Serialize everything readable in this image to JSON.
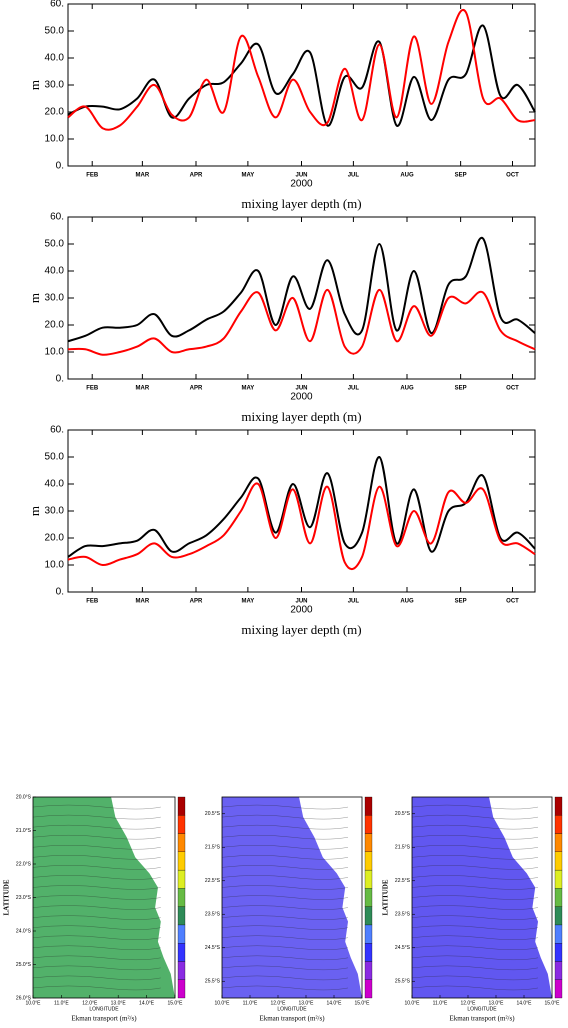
{
  "chart_data": [
    {
      "type": "line",
      "title": "mixing layer depth (m)",
      "xlabel": "2000",
      "ylabel": "m",
      "x": [
        32,
        42,
        52,
        62,
        72,
        82,
        92,
        102,
        112,
        122,
        132,
        142,
        152,
        162,
        172,
        182,
        192,
        202,
        212,
        222,
        232,
        242,
        252,
        262,
        272,
        282,
        292,
        302
      ],
      "xlim": [
        32,
        302
      ],
      "xticks": [
        {
          "value": 46,
          "label": "FEB"
        },
        {
          "value": 75,
          "label": "MAR"
        },
        {
          "value": 106,
          "label": "APR"
        },
        {
          "value": 136,
          "label": "MAY"
        },
        {
          "value": 167,
          "label": "JUN"
        },
        {
          "value": 197,
          "label": "JUL"
        },
        {
          "value": 228,
          "label": "AUG"
        },
        {
          "value": 259,
          "label": "SEP"
        },
        {
          "value": 289,
          "label": "OCT"
        }
      ],
      "ylim": [
        0,
        60
      ],
      "yticks": [
        {
          "value": 0,
          "label": "0."
        },
        {
          "value": 10,
          "label": "10.0"
        },
        {
          "value": 20,
          "label": "20.0"
        },
        {
          "value": 30,
          "label": "30.0"
        },
        {
          "value": 40,
          "label": "40.0"
        },
        {
          "value": 50,
          "label": "50.0"
        },
        {
          "value": 60,
          "label": "60."
        }
      ],
      "series": [
        {
          "color": "#000000",
          "values": [
            19,
            22,
            22,
            21,
            25,
            32,
            18,
            25,
            30,
            31,
            38,
            45,
            27,
            34,
            42,
            15,
            33,
            29,
            46,
            15,
            33,
            17,
            32,
            34,
            52,
            26,
            30,
            20
          ]
        },
        {
          "color": "#ff0000",
          "values": [
            18,
            22,
            14,
            15,
            22,
            30,
            19,
            18,
            32,
            20,
            48,
            33,
            18,
            32,
            20,
            16,
            36,
            17,
            45,
            18,
            48,
            23,
            46,
            57,
            25,
            25,
            17,
            17
          ]
        }
      ]
    },
    {
      "type": "line",
      "title": "mixing layer depth (m)",
      "xlabel": "2000",
      "ylabel": "m",
      "x": [
        32,
        42,
        52,
        62,
        72,
        82,
        92,
        102,
        112,
        122,
        132,
        142,
        152,
        162,
        172,
        182,
        192,
        202,
        212,
        222,
        232,
        242,
        252,
        262,
        272,
        282,
        292,
        302
      ],
      "xlim": [
        32,
        302
      ],
      "xticks": [
        {
          "value": 46,
          "label": "FEB"
        },
        {
          "value": 75,
          "label": "MAR"
        },
        {
          "value": 106,
          "label": "APR"
        },
        {
          "value": 136,
          "label": "MAY"
        },
        {
          "value": 167,
          "label": "JUN"
        },
        {
          "value": 197,
          "label": "JUL"
        },
        {
          "value": 228,
          "label": "AUG"
        },
        {
          "value": 259,
          "label": "SEP"
        },
        {
          "value": 289,
          "label": "OCT"
        }
      ],
      "ylim": [
        0,
        60
      ],
      "yticks": [
        {
          "value": 0,
          "label": "0."
        },
        {
          "value": 10,
          "label": "10.0"
        },
        {
          "value": 20,
          "label": "20.0"
        },
        {
          "value": 30,
          "label": "30.0"
        },
        {
          "value": 40,
          "label": "40.0"
        },
        {
          "value": 50,
          "label": "50.0"
        },
        {
          "value": 60,
          "label": "60."
        }
      ],
      "series": [
        {
          "color": "#000000",
          "values": [
            14,
            16,
            19,
            19,
            20,
            24,
            16,
            18,
            22,
            25,
            32,
            40,
            20,
            38,
            26,
            44,
            24,
            18,
            50,
            18,
            40,
            17,
            35,
            38,
            52,
            23,
            22,
            17
          ]
        },
        {
          "color": "#ff0000",
          "values": [
            11,
            11,
            9,
            10,
            12,
            15,
            10,
            11,
            12,
            15,
            25,
            32,
            18,
            30,
            14,
            33,
            12,
            12,
            33,
            14,
            27,
            16,
            30,
            28,
            32,
            18,
            14,
            11
          ]
        }
      ]
    },
    {
      "type": "line",
      "title": "mixing layer depth (m)",
      "xlabel": "2000",
      "ylabel": "m",
      "x": [
        32,
        42,
        52,
        62,
        72,
        82,
        92,
        102,
        112,
        122,
        132,
        142,
        152,
        162,
        172,
        182,
        192,
        202,
        212,
        222,
        232,
        242,
        252,
        262,
        272,
        282,
        292,
        302
      ],
      "xlim": [
        32,
        302
      ],
      "xticks": [
        {
          "value": 46,
          "label": "FEB"
        },
        {
          "value": 75,
          "label": "MAR"
        },
        {
          "value": 106,
          "label": "APR"
        },
        {
          "value": 136,
          "label": "MAY"
        },
        {
          "value": 167,
          "label": "JUN"
        },
        {
          "value": 197,
          "label": "JUL"
        },
        {
          "value": 228,
          "label": "AUG"
        },
        {
          "value": 259,
          "label": "SEP"
        },
        {
          "value": 289,
          "label": "OCT"
        }
      ],
      "ylim": [
        0,
        60
      ],
      "yticks": [
        {
          "value": 0,
          "label": "0."
        },
        {
          "value": 10,
          "label": "10.0"
        },
        {
          "value": 20,
          "label": "20.0"
        },
        {
          "value": 30,
          "label": "30.0"
        },
        {
          "value": 40,
          "label": "40.0"
        },
        {
          "value": 50,
          "label": "50.0"
        },
        {
          "value": 60,
          "label": "60."
        }
      ],
      "series": [
        {
          "color": "#000000",
          "values": [
            13,
            17,
            17,
            18,
            19,
            23,
            15,
            18,
            21,
            27,
            35,
            42,
            22,
            40,
            24,
            44,
            18,
            22,
            50,
            18,
            38,
            15,
            30,
            33,
            43,
            20,
            22,
            16
          ]
        },
        {
          "color": "#ff0000",
          "values": [
            12,
            13,
            10,
            12,
            14,
            18,
            13,
            14,
            17,
            21,
            30,
            40,
            20,
            38,
            18,
            39,
            11,
            13,
            39,
            17,
            30,
            18,
            37,
            33,
            38,
            19,
            18,
            14
          ]
        }
      ]
    },
    {
      "type": "map",
      "xlabel": "LONGITUDE",
      "ylabel": "LATITUDE",
      "title": "Ekman transport (m²/s)",
      "color": "#3fa85a",
      "xlim": [
        10,
        15
      ],
      "xticks": [
        {
          "value": 10,
          "label": "10.0°E"
        },
        {
          "value": 11,
          "label": "11.0°E"
        },
        {
          "value": 12,
          "label": "12.0°E"
        },
        {
          "value": 13,
          "label": "13.0°E"
        },
        {
          "value": 14,
          "label": "14.0°E"
        },
        {
          "value": 15,
          "label": "15.0°E"
        }
      ],
      "ylim": [
        26,
        20
      ],
      "yticks": [
        {
          "value": 20,
          "label": "20.0°S"
        },
        {
          "value": 21,
          "label": "21.0°S"
        },
        {
          "value": 22,
          "label": "22.0°S"
        },
        {
          "value": 23,
          "label": "23.0°S"
        },
        {
          "value": 24,
          "label": "24.0°S"
        },
        {
          "value": 25,
          "label": "25.0°S"
        },
        {
          "value": 26,
          "label": "26.0°S"
        }
      ]
    },
    {
      "type": "map",
      "xlabel": "LONGITUDE",
      "title": "Ekman transport (m²/s)",
      "color": "#5a50f0",
      "xlim": [
        10,
        15
      ],
      "xticks": [
        {
          "value": 10,
          "label": "10.0°E"
        },
        {
          "value": 11,
          "label": "11.0°E"
        },
        {
          "value": 12,
          "label": "12.0°E"
        },
        {
          "value": 13,
          "label": "13.0°E"
        },
        {
          "value": 14,
          "label": "14.0°E"
        },
        {
          "value": 15,
          "label": "15.0°E"
        }
      ],
      "ylim": [
        26,
        20
      ],
      "yticks": [
        {
          "value": 20.5,
          "label": "20.5°S"
        },
        {
          "value": 21.5,
          "label": "21.5°S"
        },
        {
          "value": 22.5,
          "label": "22.5°S"
        },
        {
          "value": 23.5,
          "label": "23.5°S"
        },
        {
          "value": 24.5,
          "label": "24.5°S"
        },
        {
          "value": 25.5,
          "label": "25.5°S"
        }
      ]
    },
    {
      "type": "map",
      "xlabel": "LONGITUDE",
      "ylabel": "LATITUDE",
      "title": "Ekman transport (m²/s)",
      "color": "#5045ee",
      "xlim": [
        10,
        15
      ],
      "xticks": [
        {
          "value": 10,
          "label": "10.0°E"
        },
        {
          "value": 11,
          "label": "11.0°E"
        },
        {
          "value": 12,
          "label": "12.0°E"
        },
        {
          "value": 13,
          "label": "13.0°E"
        },
        {
          "value": 14,
          "label": "14.0°E"
        },
        {
          "value": 15,
          "label": "15.0°E"
        }
      ],
      "ylim": [
        26,
        20
      ],
      "yticks": [
        {
          "value": 20.5,
          "label": "20.5°S"
        },
        {
          "value": 21.5,
          "label": "21.5°S"
        },
        {
          "value": 22.5,
          "label": "22.5°S"
        },
        {
          "value": 23.5,
          "label": "23.5°S"
        },
        {
          "value": 24.5,
          "label": "24.5°S"
        },
        {
          "value": 25.5,
          "label": "25.5°S"
        }
      ]
    }
  ]
}
